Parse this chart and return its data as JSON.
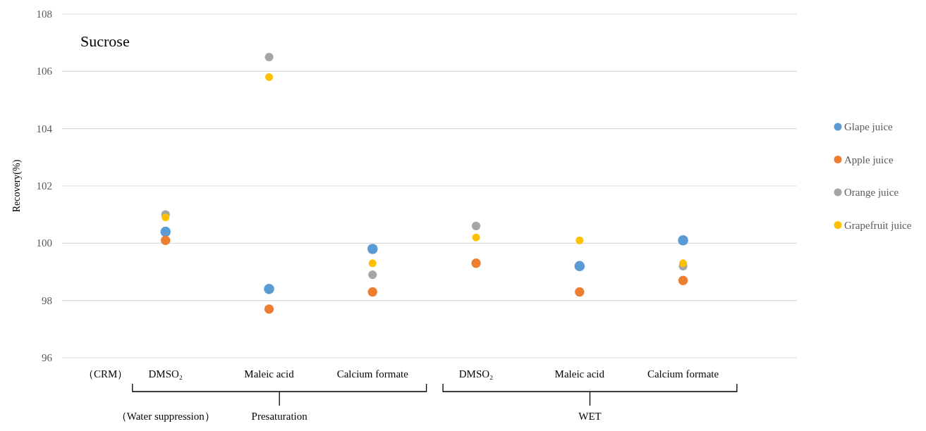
{
  "chart_data": {
    "type": "scatter",
    "title": "Sucrose",
    "ylabel": "Recovery(%)",
    "categories": [
      "DMSO₂",
      "Maleic acid",
      "Calcium formate",
      "DMSO₂",
      "Maleic acid",
      "Calcium formate"
    ],
    "series": [
      {
        "name": "Glape juice",
        "color": "#5b9bd5",
        "values": [
          100.4,
          98.4,
          99.8,
          null,
          99.2,
          100.1
        ]
      },
      {
        "name": "Apple juice",
        "color": "#ed7d31",
        "values": [
          100.1,
          97.7,
          98.3,
          99.3,
          98.3,
          98.7
        ]
      },
      {
        "name": "Orange juice",
        "color": "#a5a5a5",
        "values": [
          101.0,
          106.5,
          98.9,
          100.6,
          null,
          99.2
        ]
      },
      {
        "name": "Grapefruit juice",
        "color": "#ffc000",
        "values": [
          100.9,
          105.8,
          99.3,
          100.2,
          100.1,
          99.3
        ]
      }
    ],
    "ylim": [
      96,
      108
    ],
    "yticks": [
      96,
      98,
      100,
      102,
      104,
      106,
      108
    ],
    "grid": "y",
    "marker": "circle",
    "legend": "right",
    "annotations": [
      "（CRM）",
      "（Water suppression）",
      "Presaturation",
      "WET"
    ]
  }
}
